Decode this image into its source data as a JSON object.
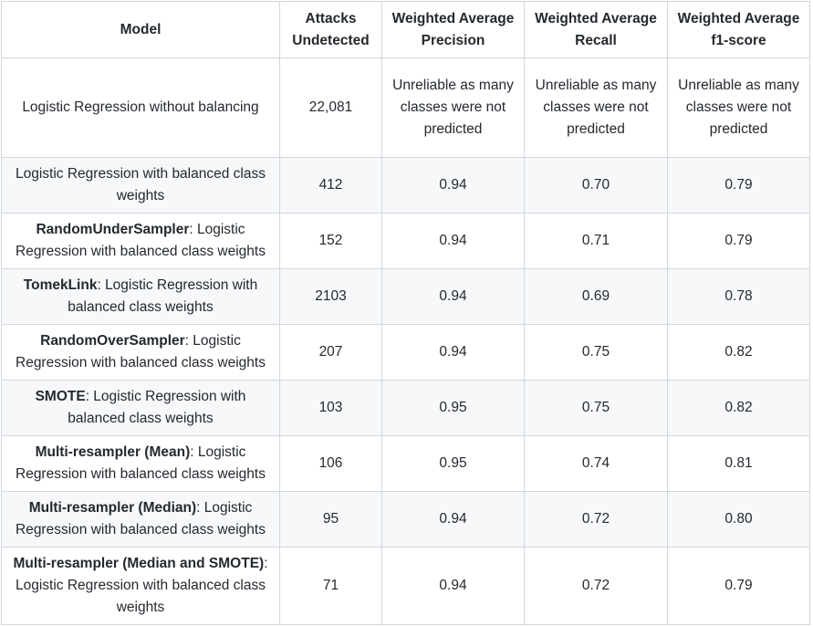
{
  "table": {
    "headers": {
      "model": "Model",
      "attacks": "Attacks Undetected",
      "precision": "Weighted Average Precision",
      "recall": "Weighted Average Recall",
      "f1": "Weighted Average f1-score"
    },
    "rows": [
      {
        "model_bold": "",
        "model_text": "Logistic Regression without balancing",
        "attacks": "22,081",
        "precision": "Unreliable as many classes were not predicted",
        "recall": "Unreliable as many classes were not predicted",
        "f1": "Unreliable as many classes were not predicted"
      },
      {
        "model_bold": "",
        "model_text": "Logistic Regression with balanced class weights",
        "attacks": "412",
        "precision": "0.94",
        "recall": "0.70",
        "f1": "0.79"
      },
      {
        "model_bold": "RandomUnderSampler",
        "model_text": ": Logistic Regression with balanced class weights",
        "attacks": "152",
        "precision": "0.94",
        "recall": "0.71",
        "f1": "0.79"
      },
      {
        "model_bold": "TomekLink",
        "model_text": ": Logistic Regression with balanced class weights",
        "attacks": "2103",
        "precision": "0.94",
        "recall": "0.69",
        "f1": "0.78"
      },
      {
        "model_bold": "RandomOverSampler",
        "model_text": ": Logistic Regression with balanced class weights",
        "attacks": "207",
        "precision": "0.94",
        "recall": "0.75",
        "f1": "0.82"
      },
      {
        "model_bold": "SMOTE",
        "model_text": ": Logistic Regression with balanced class weights",
        "attacks": "103",
        "precision": "0.95",
        "recall": "0.75",
        "f1": "0.82"
      },
      {
        "model_bold": "Multi-resampler (Mean)",
        "model_text": ": Logistic Regression with balanced class weights",
        "attacks": "106",
        "precision": "0.95",
        "recall": "0.74",
        "f1": "0.81"
      },
      {
        "model_bold": "Multi-resampler (Median)",
        "model_text": ": Logistic Regression with balanced class weights",
        "attacks": "95",
        "precision": "0.94",
        "recall": "0.72",
        "f1": "0.80"
      },
      {
        "model_bold": "Multi-resampler (Median and SMOTE)",
        "model_text": ": Logistic Regression with balanced class weights",
        "attacks": "71",
        "precision": "0.94",
        "recall": "0.72",
        "f1": "0.79"
      }
    ]
  }
}
